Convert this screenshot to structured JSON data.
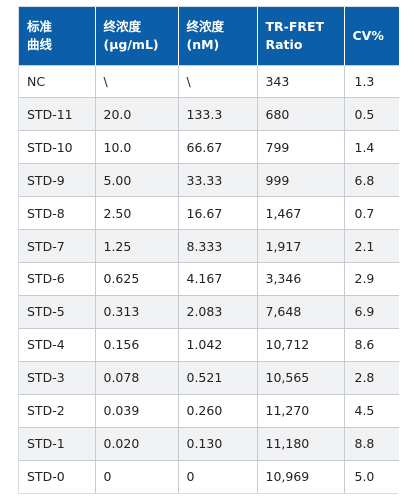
{
  "table": {
    "headers": [
      [
        "标准",
        "曲线"
      ],
      [
        "终浓度",
        "(μg/mL)"
      ],
      [
        "终浓度",
        "(nM)"
      ],
      [
        "TR-FRET",
        "Ratio"
      ],
      [
        "CV%"
      ]
    ],
    "rows": [
      [
        "NC",
        "\\",
        "\\",
        "343",
        "1.3"
      ],
      [
        "STD-11",
        "20.0",
        "133.3",
        "680",
        "0.5"
      ],
      [
        "STD-10",
        "10.0",
        "66.67",
        "799",
        "1.4"
      ],
      [
        "STD-9",
        "5.00",
        "33.33",
        "999",
        "6.8"
      ],
      [
        "STD-8",
        "2.50",
        "16.67",
        "1,467",
        "0.7"
      ],
      [
        "STD-7",
        "1.25",
        "8.333",
        "1,917",
        "2.1"
      ],
      [
        "STD-6",
        "0.625",
        "4.167",
        "3,346",
        "2.9"
      ],
      [
        "STD-5",
        "0.313",
        "2.083",
        "7,648",
        "6.9"
      ],
      [
        "STD-4",
        "0.156",
        "1.042",
        "10,712",
        "8.6"
      ],
      [
        "STD-3",
        "0.078",
        "0.521",
        "10,565",
        "2.8"
      ],
      [
        "STD-2",
        "0.039",
        "0.260",
        "11,270",
        "4.5"
      ],
      [
        "STD-1",
        "0.020",
        "0.130",
        "11,180",
        "8.8"
      ],
      [
        "STD-0",
        "0",
        "0",
        "10,969",
        "5.0"
      ]
    ]
  },
  "colors": {
    "header_bg": "#0b5ea8",
    "header_text": "#ffffff",
    "row_alt_bg": "#f1f2f4",
    "grid_line": "#c8ccd2"
  }
}
